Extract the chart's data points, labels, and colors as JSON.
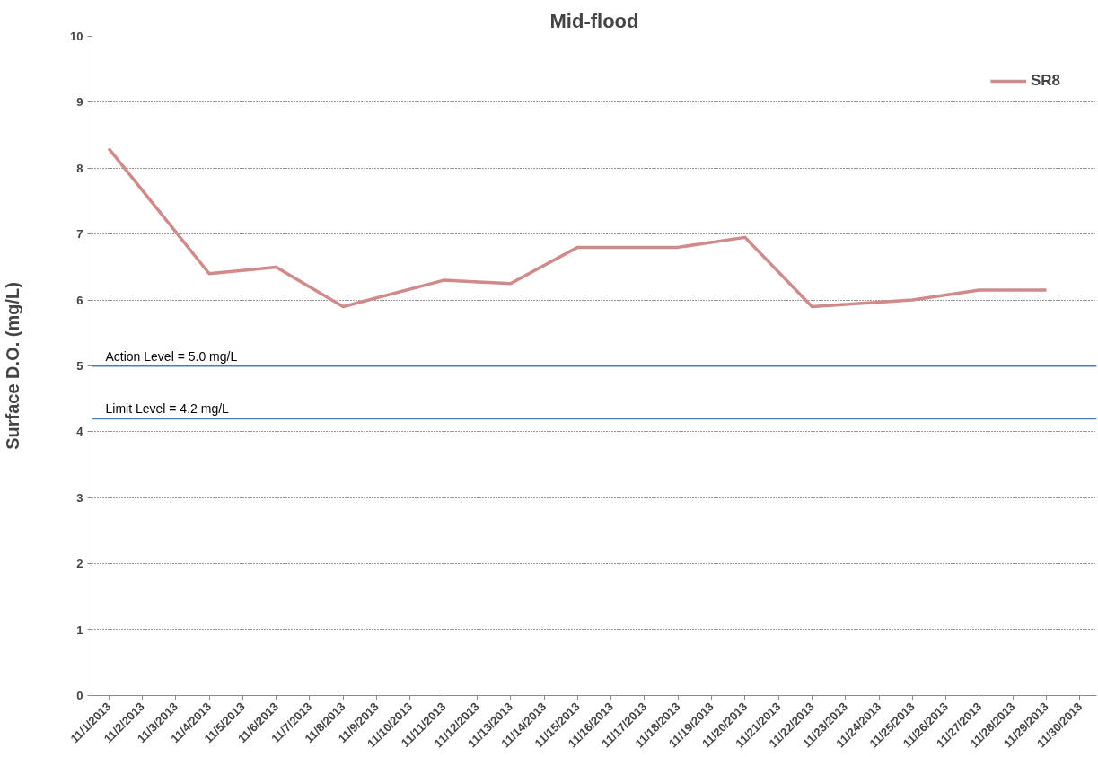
{
  "chart_data": {
    "type": "line",
    "title": "Mid-flood",
    "ylabel": "Surface D.O. (mg/L)",
    "x": [
      "2013-11-01",
      "2013-11-04",
      "2013-11-06",
      "2013-11-08",
      "2013-11-11",
      "2013-11-13",
      "2013-11-15",
      "2013-11-18",
      "2013-11-20",
      "2013-11-22",
      "2013-11-25",
      "2013-11-27",
      "2013-11-29"
    ],
    "series": [
      {
        "name": "SR8",
        "color": "#d08a8a",
        "values": [
          8.3,
          6.4,
          6.5,
          5.9,
          6.3,
          6.25,
          6.8,
          6.8,
          6.95,
          5.9,
          6.0,
          6.15,
          6.15
        ]
      }
    ],
    "xlim": [
      "2013-10-31T12:00",
      "2013-11-30T12:00"
    ],
    "xticks": [
      {
        "value": "2013-11-01",
        "label": "11/1/2013"
      },
      {
        "value": "2013-11-02",
        "label": "11/2/2013"
      },
      {
        "value": "2013-11-03",
        "label": "11/3/2013"
      },
      {
        "value": "2013-11-04",
        "label": "11/4/2013"
      },
      {
        "value": "2013-11-05",
        "label": "11/5/2013"
      },
      {
        "value": "2013-11-06",
        "label": "11/6/2013"
      },
      {
        "value": "2013-11-07",
        "label": "11/7/2013"
      },
      {
        "value": "2013-11-08",
        "label": "11/8/2013"
      },
      {
        "value": "2013-11-09",
        "label": "11/9/2013"
      },
      {
        "value": "2013-11-10",
        "label": "11/10/2013"
      },
      {
        "value": "2013-11-11",
        "label": "11/11/2013"
      },
      {
        "value": "2013-11-12",
        "label": "11/12/2013"
      },
      {
        "value": "2013-11-13",
        "label": "11/13/2013"
      },
      {
        "value": "2013-11-14",
        "label": "11/14/2013"
      },
      {
        "value": "2013-11-15",
        "label": "11/15/2013"
      },
      {
        "value": "2013-11-16",
        "label": "11/16/2013"
      },
      {
        "value": "2013-11-17",
        "label": "11/17/2013"
      },
      {
        "value": "2013-11-18",
        "label": "11/18/2013"
      },
      {
        "value": "2013-11-19",
        "label": "11/19/2013"
      },
      {
        "value": "2013-11-20",
        "label": "11/20/2013"
      },
      {
        "value": "2013-11-21",
        "label": "11/21/2013"
      },
      {
        "value": "2013-11-22",
        "label": "11/22/2013"
      },
      {
        "value": "2013-11-23",
        "label": "11/23/2013"
      },
      {
        "value": "2013-11-24",
        "label": "11/24/2013"
      },
      {
        "value": "2013-11-25",
        "label": "11/25/2013"
      },
      {
        "value": "2013-11-26",
        "label": "11/26/2013"
      },
      {
        "value": "2013-11-27",
        "label": "11/27/2013"
      },
      {
        "value": "2013-11-28",
        "label": "11/28/2013"
      },
      {
        "value": "2013-11-29",
        "label": "11/29/2013"
      },
      {
        "value": "2013-11-30",
        "label": "11/30/2013"
      }
    ],
    "ylim": [
      0,
      10
    ],
    "yticks": [
      0,
      1,
      2,
      3,
      4,
      5,
      6,
      7,
      8,
      9,
      10
    ],
    "ref_lines": [
      {
        "axis": "y",
        "value": 5.0,
        "label": "Action Level = 5.0 mg/L",
        "color": "#4a7ebb"
      },
      {
        "axis": "y",
        "value": 4.2,
        "label": "Limit Level = 4.2 mg/L",
        "color": "#4a7ebb"
      }
    ],
    "grid": "y",
    "legend": "top right",
    "line_style": "solid"
  }
}
